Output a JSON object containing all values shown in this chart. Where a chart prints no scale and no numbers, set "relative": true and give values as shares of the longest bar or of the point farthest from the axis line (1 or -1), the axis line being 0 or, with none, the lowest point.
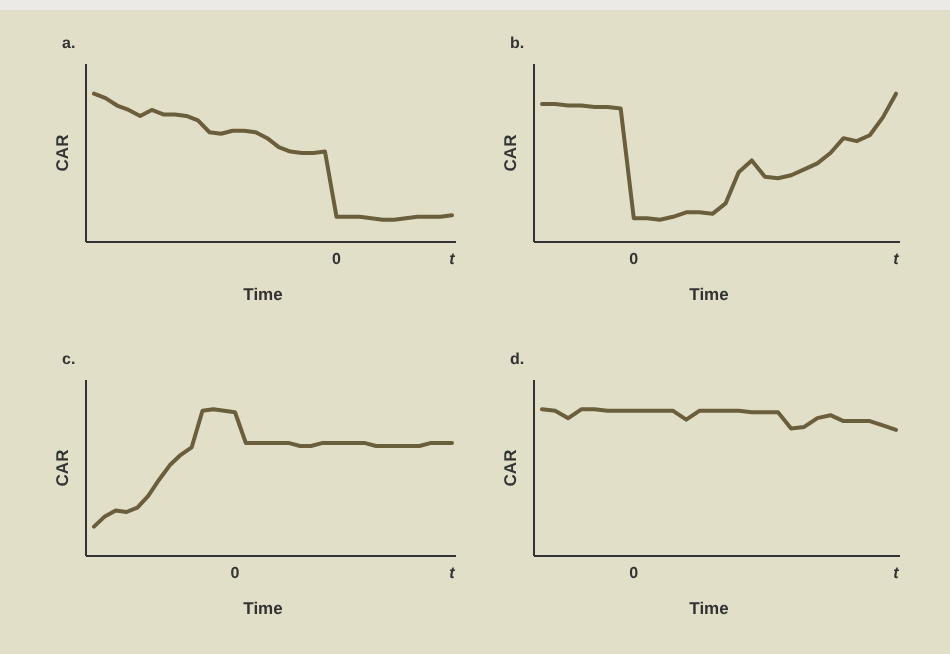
{
  "chart_data": [
    {
      "type": "line",
      "title": "a.",
      "xlabel": "Time",
      "ylabel": "CAR",
      "relative": true,
      "color": "#6b5e3c",
      "categories": [
        null,
        null,
        null,
        null,
        null,
        null,
        null,
        null,
        null,
        null,
        null,
        null,
        null,
        null,
        null,
        null,
        null,
        null,
        null,
        null,
        null,
        "0",
        null,
        null,
        null,
        null,
        null,
        null,
        null,
        null,
        null,
        "t"
      ],
      "values": [
        1.0,
        0.97,
        0.92,
        0.89,
        0.85,
        0.89,
        0.86,
        0.86,
        0.85,
        0.82,
        0.74,
        0.73,
        0.75,
        0.75,
        0.74,
        0.7,
        0.64,
        0.61,
        0.6,
        0.6,
        0.61,
        0.17,
        0.17,
        0.17,
        0.16,
        0.15,
        0.15,
        0.16,
        0.17,
        0.17,
        0.17,
        0.18
      ]
    },
    {
      "type": "line",
      "title": "b.",
      "xlabel": "Time",
      "ylabel": "CAR",
      "relative": true,
      "color": "#6b5e3c",
      "categories": [
        null,
        null,
        null,
        null,
        null,
        null,
        null,
        "0",
        null,
        null,
        null,
        null,
        null,
        null,
        null,
        null,
        null,
        null,
        null,
        null,
        null,
        null,
        null,
        null,
        null,
        null,
        null,
        "t"
      ],
      "values": [
        0.93,
        0.93,
        0.92,
        0.92,
        0.91,
        0.91,
        0.9,
        0.16,
        0.16,
        0.15,
        0.17,
        0.2,
        0.2,
        0.19,
        0.26,
        0.47,
        0.55,
        0.44,
        0.43,
        0.45,
        0.49,
        0.53,
        0.6,
        0.7,
        0.68,
        0.72,
        0.84,
        1.0
      ]
    },
    {
      "type": "line",
      "title": "c.",
      "xlabel": "Time",
      "ylabel": "CAR",
      "relative": true,
      "color": "#6b5e3c",
      "categories": [
        null,
        null,
        null,
        null,
        null,
        null,
        null,
        null,
        null,
        null,
        null,
        null,
        null,
        "0",
        null,
        null,
        null,
        null,
        null,
        null,
        null,
        null,
        null,
        null,
        null,
        null,
        null,
        null,
        null,
        null,
        null,
        null,
        null,
        "t"
      ],
      "values": [
        0.2,
        0.27,
        0.31,
        0.3,
        0.33,
        0.41,
        0.52,
        0.62,
        0.69,
        0.74,
        0.99,
        1.0,
        0.99,
        0.98,
        0.77,
        0.77,
        0.77,
        0.77,
        0.77,
        0.75,
        0.75,
        0.77,
        0.77,
        0.77,
        0.77,
        0.77,
        0.75,
        0.75,
        0.75,
        0.75,
        0.75,
        0.77,
        0.77,
        0.77
      ]
    },
    {
      "type": "line",
      "title": "d.",
      "xlabel": "Time",
      "ylabel": "CAR",
      "relative": true,
      "color": "#6b5e3c",
      "categories": [
        null,
        null,
        null,
        null,
        null,
        null,
        null,
        "0",
        null,
        null,
        null,
        null,
        null,
        null,
        null,
        null,
        null,
        null,
        null,
        null,
        null,
        null,
        null,
        null,
        null,
        null,
        null,
        "t"
      ],
      "values": [
        1.0,
        0.99,
        0.94,
        1.0,
        1.0,
        0.99,
        0.99,
        0.99,
        0.99,
        0.99,
        0.99,
        0.93,
        0.99,
        0.99,
        0.99,
        0.99,
        0.98,
        0.98,
        0.98,
        0.87,
        0.88,
        0.94,
        0.96,
        0.92,
        0.92,
        0.92,
        0.89,
        0.86
      ]
    }
  ]
}
